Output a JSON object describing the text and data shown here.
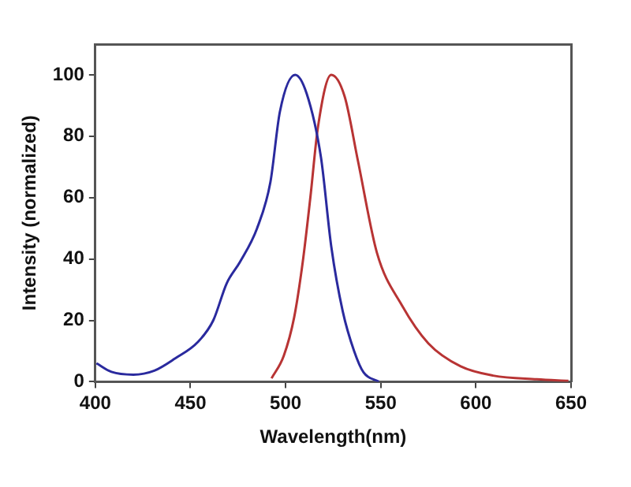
{
  "chart_data": {
    "type": "line",
    "xlabel": "Wavelength(nm)",
    "ylabel": "Intensity (normalized)",
    "xlim": [
      400,
      650
    ],
    "xticks": [
      400,
      450,
      500,
      550,
      600,
      650
    ],
    "ylim": [
      0,
      110
    ],
    "yticks": [
      0,
      20,
      40,
      60,
      80,
      100
    ],
    "grid": false,
    "legend": false,
    "marker": "none",
    "line_style": "solid",
    "series": [
      {
        "color": "#2a2a9e",
        "x": [
          400.6,
          408.5,
          420,
          431,
          442,
          454,
          462,
          469,
          476,
          485,
          492,
          497,
          505,
          511,
          518.6,
          524,
          530,
          536,
          541,
          549
        ],
        "values": [
          6,
          3.2,
          2.3,
          3.6,
          7.6,
          13,
          20,
          32,
          39,
          50,
          65,
          88,
          100,
          94,
          73,
          44,
          23,
          10,
          3,
          0
        ]
      },
      {
        "color": "#b83434",
        "x": [
          492.6,
          499,
          504.5,
          509,
          513,
          517,
          524,
          531,
          538,
          548,
          561,
          575,
          592,
          609,
          632,
          648.6
        ],
        "values": [
          1.1,
          8.4,
          21,
          39,
          60,
          83,
          100,
          93,
          72,
          42,
          25,
          12.5,
          5,
          2,
          0.8,
          0.3
        ]
      }
    ]
  }
}
